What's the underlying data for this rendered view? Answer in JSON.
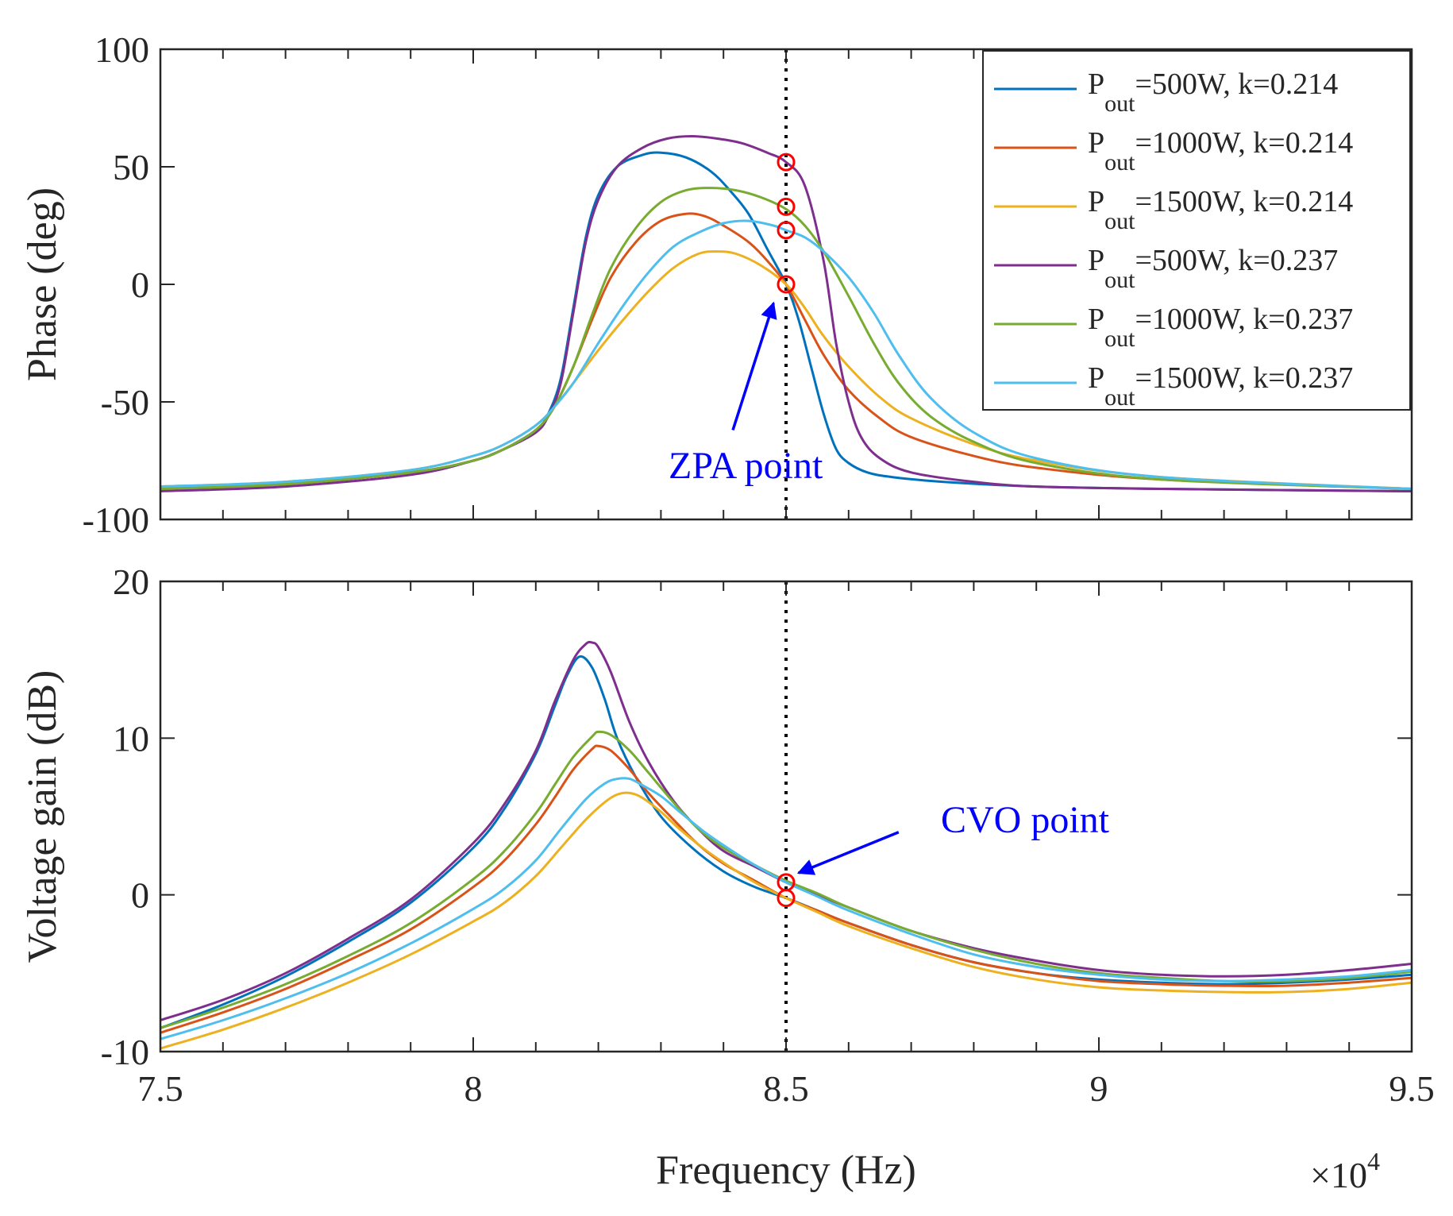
{
  "figure": {
    "xlabel": "Frequency (Hz)",
    "x_multiplier_base": "×10",
    "x_multiplier_exp": "4",
    "marker_color": "#ff0000",
    "annotation_color": "#0000ff",
    "vline_color": "#000000"
  },
  "chart_data": [
    {
      "type": "line",
      "title": "",
      "xlabel": "",
      "ylabel": "Phase (deg)",
      "xlim": [
        75000,
        95000
      ],
      "ylim": [
        -100,
        100
      ],
      "xticks": [
        75000,
        80000,
        85000,
        90000,
        95000
      ],
      "xtick_labels": [
        "7.5",
        "8",
        "8.5",
        "9",
        "9.5"
      ],
      "yticks": [
        -100,
        -50,
        0,
        50,
        100
      ],
      "ytick_labels": [
        "-100",
        "-50",
        "0",
        "50",
        "100"
      ],
      "vline": 85000,
      "grid": false,
      "legend_position": "top-right",
      "series": [
        {
          "name": "Pout=500W, k=0.214",
          "label_main": "P",
          "label_sub": "out",
          "label_rest": "=500W, k=0.214",
          "color": "#0072BD",
          "x": [
            75000,
            77000,
            79000,
            80000,
            80500,
            81000,
            81200,
            81400,
            81600,
            81800,
            82000,
            82300,
            82700,
            83000,
            83400,
            83800,
            84100,
            84400,
            84700,
            85000,
            85200,
            85400,
            85600,
            85800,
            86000,
            86300,
            86700,
            87500,
            89000,
            91000,
            95000
          ],
          "y": [
            -87,
            -85,
            -80,
            -75,
            -70,
            -62,
            -55,
            -40,
            -10,
            20,
            38,
            50,
            55,
            56,
            54,
            48,
            40,
            30,
            15,
            0,
            -15,
            -35,
            -55,
            -70,
            -76,
            -80,
            -82,
            -84,
            -86,
            -87,
            -88
          ]
        },
        {
          "name": "Pout=1000W, k=0.214",
          "label_main": "P",
          "label_sub": "out",
          "label_rest": "=1000W, k=0.214",
          "color": "#D95319",
          "x": [
            75000,
            77000,
            79000,
            80000,
            80500,
            81000,
            81300,
            81600,
            81900,
            82200,
            82600,
            83000,
            83400,
            83700,
            84000,
            84400,
            84700,
            85000,
            85300,
            85600,
            86000,
            86500,
            87000,
            88000,
            89000,
            91000,
            95000
          ],
          "y": [
            -87,
            -85,
            -80,
            -75,
            -70,
            -62,
            -52,
            -35,
            -15,
            3,
            18,
            27,
            30,
            29,
            25,
            18,
            10,
            0,
            -15,
            -30,
            -45,
            -57,
            -65,
            -73,
            -78,
            -83,
            -87
          ]
        },
        {
          "name": "Pout=1500W, k=0.214",
          "label_main": "P",
          "label_sub": "out",
          "label_rest": "=1500W, k=0.214",
          "color": "#EDB120",
          "x": [
            75000,
            77000,
            79000,
            80000,
            80500,
            81000,
            81300,
            81600,
            82000,
            82400,
            82800,
            83200,
            83600,
            83900,
            84200,
            84600,
            85000,
            85300,
            85600,
            86000,
            86500,
            87000,
            88000,
            89000,
            91000,
            95000
          ],
          "y": [
            -86,
            -84,
            -79,
            -73,
            -68,
            -60,
            -52,
            -42,
            -28,
            -15,
            -3,
            7,
            13,
            14,
            13,
            8,
            0,
            -10,
            -22,
            -35,
            -48,
            -57,
            -68,
            -75,
            -82,
            -87
          ]
        },
        {
          "name": "Pout=500W, k=0.237",
          "label_main": "P",
          "label_sub": "out",
          "label_rest": "=500W, k=0.237",
          "color": "#7E2F8E",
          "x": [
            75000,
            77000,
            79000,
            80000,
            80500,
            81000,
            81200,
            81400,
            81600,
            81800,
            82000,
            82300,
            82700,
            83100,
            83500,
            83900,
            84300,
            84700,
            85000,
            85300,
            85600,
            85800,
            86000,
            86200,
            86500,
            87000,
            88000,
            89000,
            91000,
            95000
          ],
          "y": [
            -88,
            -86,
            -81,
            -75,
            -70,
            -63,
            -56,
            -42,
            -12,
            18,
            36,
            50,
            58,
            62,
            63,
            62,
            60,
            56,
            52,
            42,
            10,
            -25,
            -50,
            -65,
            -74,
            -80,
            -84,
            -86,
            -87,
            -88
          ]
        },
        {
          "name": "Pout=1000W, k=0.237",
          "label_main": "P",
          "label_sub": "out",
          "label_rest": "=1000W, k=0.237",
          "color": "#77AC30",
          "x": [
            75000,
            77000,
            79000,
            80000,
            80500,
            81000,
            81300,
            81600,
            81900,
            82200,
            82600,
            83000,
            83400,
            83800,
            84200,
            84600,
            85000,
            85300,
            85600,
            86000,
            86400,
            86800,
            87300,
            88000,
            89000,
            91000,
            95000
          ],
          "y": [
            -87,
            -85,
            -80,
            -75,
            -70,
            -62,
            -52,
            -35,
            -13,
            7,
            24,
            35,
            40,
            41,
            40,
            37,
            32,
            25,
            14,
            -5,
            -25,
            -42,
            -56,
            -67,
            -76,
            -83,
            -87
          ]
        },
        {
          "name": "Pout=1500W, k=0.237",
          "label_main": "P",
          "label_sub": "out",
          "label_rest": "=1500W, k=0.237",
          "color": "#4DBEEE",
          "x": [
            75000,
            77000,
            79000,
            80000,
            80500,
            81000,
            81300,
            81600,
            82000,
            82400,
            82800,
            83200,
            83600,
            84000,
            84400,
            84800,
            85000,
            85300,
            85600,
            86000,
            86400,
            86800,
            87300,
            88000,
            89000,
            91000,
            95000
          ],
          "y": [
            -86,
            -84,
            -79,
            -73,
            -68,
            -60,
            -52,
            -42,
            -25,
            -9,
            5,
            16,
            22,
            26,
            27,
            25,
            23,
            20,
            14,
            3,
            -12,
            -30,
            -48,
            -63,
            -74,
            -82,
            -87
          ]
        }
      ],
      "markers": [
        {
          "x": 85000,
          "y": 52
        },
        {
          "x": 85000,
          "y": 33
        },
        {
          "x": 85000,
          "y": 23
        },
        {
          "x": 85000,
          "y": 0
        }
      ],
      "annotation": {
        "text": "ZPA point",
        "arrow_from": [
          84150,
          -62
        ],
        "arrow_to": [
          84800,
          -8
        ]
      }
    },
    {
      "type": "line",
      "title": "",
      "xlabel": "Frequency (Hz)",
      "ylabel": "Voltage gain (dB)",
      "xlim": [
        75000,
        95000
      ],
      "ylim": [
        -10,
        20
      ],
      "xticks": [
        75000,
        80000,
        85000,
        90000,
        95000
      ],
      "xtick_labels": [
        "7.5",
        "8",
        "8.5",
        "9",
        "9.5"
      ],
      "yticks": [
        -10,
        0,
        10,
        20
      ],
      "ytick_labels": [
        "-10",
        "0",
        "10",
        "20"
      ],
      "vline": 85000,
      "grid": false,
      "series": [
        {
          "name": "Pout=500W, k=0.214",
          "color": "#0072BD",
          "x": [
            75000,
            76000,
            77000,
            78000,
            79000,
            80000,
            80500,
            81000,
            81300,
            81500,
            81700,
            81900,
            82100,
            82300,
            82600,
            83000,
            83500,
            84000,
            84500,
            85000,
            85500,
            86000,
            87000,
            88000,
            89000,
            90000,
            91000,
            92000,
            93000,
            94000,
            95000
          ],
          "y": [
            -8.5,
            -7,
            -5.2,
            -3,
            -0.5,
            3,
            5.5,
            9,
            12,
            14,
            15.2,
            14.5,
            12.5,
            10,
            7.5,
            5,
            3,
            1.5,
            0.5,
            -0.2,
            -1,
            -1.8,
            -3.2,
            -4.3,
            -5,
            -5.4,
            -5.6,
            -5.7,
            -5.6,
            -5.4,
            -5.1
          ]
        },
        {
          "name": "Pout=1000W, k=0.214",
          "color": "#D95319",
          "x": [
            75000,
            76000,
            77000,
            78000,
            79000,
            80000,
            80500,
            81000,
            81300,
            81600,
            81900,
            82000,
            82200,
            82500,
            82800,
            83200,
            83600,
            84000,
            84500,
            85000,
            85500,
            86000,
            87000,
            88000,
            89000,
            90000,
            91000,
            92000,
            93000,
            94000,
            95000
          ],
          "y": [
            -8.8,
            -7.5,
            -6,
            -4.2,
            -2.2,
            0.5,
            2.2,
            4.5,
            6.2,
            8,
            9.3,
            9.5,
            9.2,
            8,
            6.5,
            4.8,
            3.2,
            2,
            0.9,
            -0.2,
            -1,
            -1.8,
            -3.2,
            -4.3,
            -5,
            -5.5,
            -5.7,
            -5.8,
            -5.8,
            -5.6,
            -5.3
          ]
        },
        {
          "name": "Pout=1500W, k=0.214",
          "color": "#EDB120",
          "x": [
            75000,
            76000,
            77000,
            78000,
            79000,
            80000,
            80500,
            81000,
            81400,
            81800,
            82100,
            82300,
            82500,
            82700,
            83000,
            83300,
            83700,
            84100,
            84500,
            85000,
            85500,
            86000,
            87000,
            88000,
            89000,
            90000,
            91000,
            92000,
            93000,
            94000,
            95000
          ],
          "y": [
            -9.8,
            -8.6,
            -7.2,
            -5.6,
            -3.8,
            -1.7,
            -0.5,
            1.2,
            3,
            4.8,
            5.9,
            6.4,
            6.5,
            6.2,
            5.3,
            4.2,
            2.9,
            1.8,
            0.8,
            -0.2,
            -1.1,
            -2,
            -3.4,
            -4.6,
            -5.4,
            -5.9,
            -6.1,
            -6.2,
            -6.2,
            -6,
            -5.6
          ]
        },
        {
          "name": "Pout=500W, k=0.237",
          "color": "#7E2F8E",
          "x": [
            75000,
            76000,
            77000,
            78000,
            79000,
            80000,
            80500,
            81000,
            81300,
            81600,
            81800,
            81900,
            82000,
            82200,
            82500,
            82800,
            83200,
            83600,
            84000,
            84500,
            85000,
            85500,
            86000,
            87000,
            88000,
            89000,
            90000,
            91000,
            92000,
            93000,
            94000,
            95000
          ],
          "y": [
            -8,
            -6.7,
            -5,
            -2.8,
            -0.3,
            3.3,
            5.8,
            9.2,
            12.3,
            15,
            16,
            16.1,
            15.8,
            14.2,
            11,
            8.5,
            6,
            4.2,
            2.8,
            1.8,
            0.8,
            0,
            -0.8,
            -2.3,
            -3.4,
            -4.2,
            -4.8,
            -5.1,
            -5.2,
            -5.1,
            -4.8,
            -4.4
          ]
        },
        {
          "name": "Pout=1000W, k=0.237",
          "color": "#77AC30",
          "x": [
            75000,
            76000,
            77000,
            78000,
            79000,
            80000,
            80500,
            81000,
            81300,
            81600,
            81900,
            82000,
            82200,
            82500,
            82800,
            83200,
            83600,
            84000,
            84500,
            85000,
            85500,
            86000,
            87000,
            88000,
            89000,
            90000,
            91000,
            92000,
            93000,
            94000,
            95000
          ],
          "y": [
            -8.5,
            -7.2,
            -5.7,
            -3.9,
            -1.8,
            1,
            2.8,
            5.2,
            7,
            8.8,
            10.1,
            10.4,
            10.2,
            9.2,
            7.8,
            5.9,
            4.2,
            3,
            1.9,
            0.9,
            0.1,
            -0.8,
            -2.3,
            -3.5,
            -4.4,
            -5,
            -5.3,
            -5.5,
            -5.5,
            -5.3,
            -4.9
          ]
        },
        {
          "name": "Pout=1500W, k=0.237",
          "color": "#4DBEEE",
          "x": [
            75000,
            76000,
            77000,
            78000,
            79000,
            80000,
            80500,
            81000,
            81400,
            81800,
            82100,
            82300,
            82500,
            82700,
            83000,
            83300,
            83700,
            84100,
            84500,
            85000,
            85500,
            86000,
            87000,
            88000,
            89000,
            90000,
            91000,
            92000,
            93000,
            94000,
            95000
          ],
          "y": [
            -9.2,
            -8,
            -6.6,
            -5,
            -3.1,
            -0.9,
            0.4,
            2.2,
            4.2,
            6.1,
            7.1,
            7.4,
            7.4,
            7,
            6.3,
            5.3,
            4,
            2.9,
            1.9,
            0.8,
            -0.1,
            -1,
            -2.5,
            -3.8,
            -4.6,
            -5.1,
            -5.4,
            -5.5,
            -5.4,
            -5.2,
            -4.8
          ]
        }
      ],
      "markers": [
        {
          "x": 85000,
          "y": 0.8
        },
        {
          "x": 85000,
          "y": -0.2
        }
      ],
      "annotation": {
        "text": "CVO point",
        "arrow_from": [
          86800,
          4
        ],
        "arrow_to": [
          85200,
          1.4
        ]
      }
    }
  ]
}
